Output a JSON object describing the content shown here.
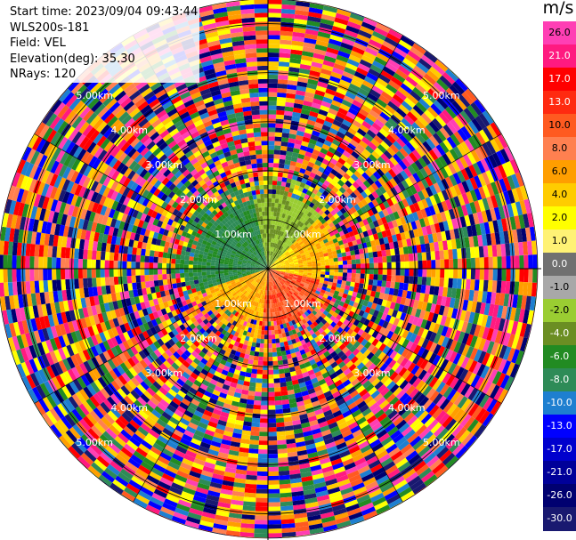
{
  "header": {
    "start_time": "Start time: 2023/09/04 09:43:44",
    "instrument": "WLS200s-181",
    "field": "Field: VEL",
    "elevation": "Elevation(deg): 35.30",
    "nrays": "NRays: 120"
  },
  "colorbar": {
    "unit": "m/s",
    "ticks": [
      "26.0",
      "21.0",
      "17.0",
      "13.0",
      "10.0",
      "8.0",
      "6.0",
      "4.0",
      "2.0",
      "1.0",
      "0.0",
      "-1.0",
      "-2.0",
      "-4.0",
      "-6.0",
      "-8.0",
      "-10.0",
      "-13.0",
      "-17.0",
      "-21.0",
      "-26.0",
      "-30.0"
    ],
    "colors": [
      "#ff3fb4",
      "#ff1a80",
      "#ff0000",
      "#ff2a10",
      "#ff5a20",
      "#ff8050",
      "#ff9e00",
      "#ffcc00",
      "#ffff00",
      "#fff275",
      "#707070",
      "#a8a8a8",
      "#9acd32",
      "#6b8e23",
      "#228b22",
      "#2e8b57",
      "#1e7fd0",
      "#0000ff",
      "#0000cd",
      "#000099",
      "#000070",
      "#191970"
    ]
  },
  "chart_data": {
    "type": "heatmap",
    "title": "",
    "projection": "polar PPI",
    "field": "VEL",
    "nrays": 120,
    "range_rings_km": [
      "1.00km",
      "2.00km",
      "3.00km",
      "4.00km",
      "5.00km"
    ],
    "range_labels_km": [
      1.0,
      2.0,
      3.0,
      4.0,
      5.0
    ],
    "max_range_km": 5.5,
    "colorbar_unit": "m/s",
    "colorbar_range": [
      -30.0,
      26.0
    ],
    "regions": [
      {
        "sector": "north-west inner",
        "range_km": [
          0,
          1.5
        ],
        "velocity_ms": -10.0
      },
      {
        "sector": "north inner",
        "range_km": [
          0,
          1.6
        ],
        "velocity_ms": -5.0
      },
      {
        "sector": "east inner",
        "range_km": [
          0,
          1.2
        ],
        "velocity_ms": 3.0
      },
      {
        "sector": "south-east inner",
        "range_km": [
          0,
          1.3
        ],
        "velocity_ms": 8.0
      },
      {
        "sector": "south-west inner",
        "range_km": [
          0,
          1.5
        ],
        "velocity_ms": 4.0
      },
      {
        "sector": "outer",
        "range_km": [
          1.7,
          5.5
        ],
        "velocity_ms": "noise"
      }
    ]
  }
}
